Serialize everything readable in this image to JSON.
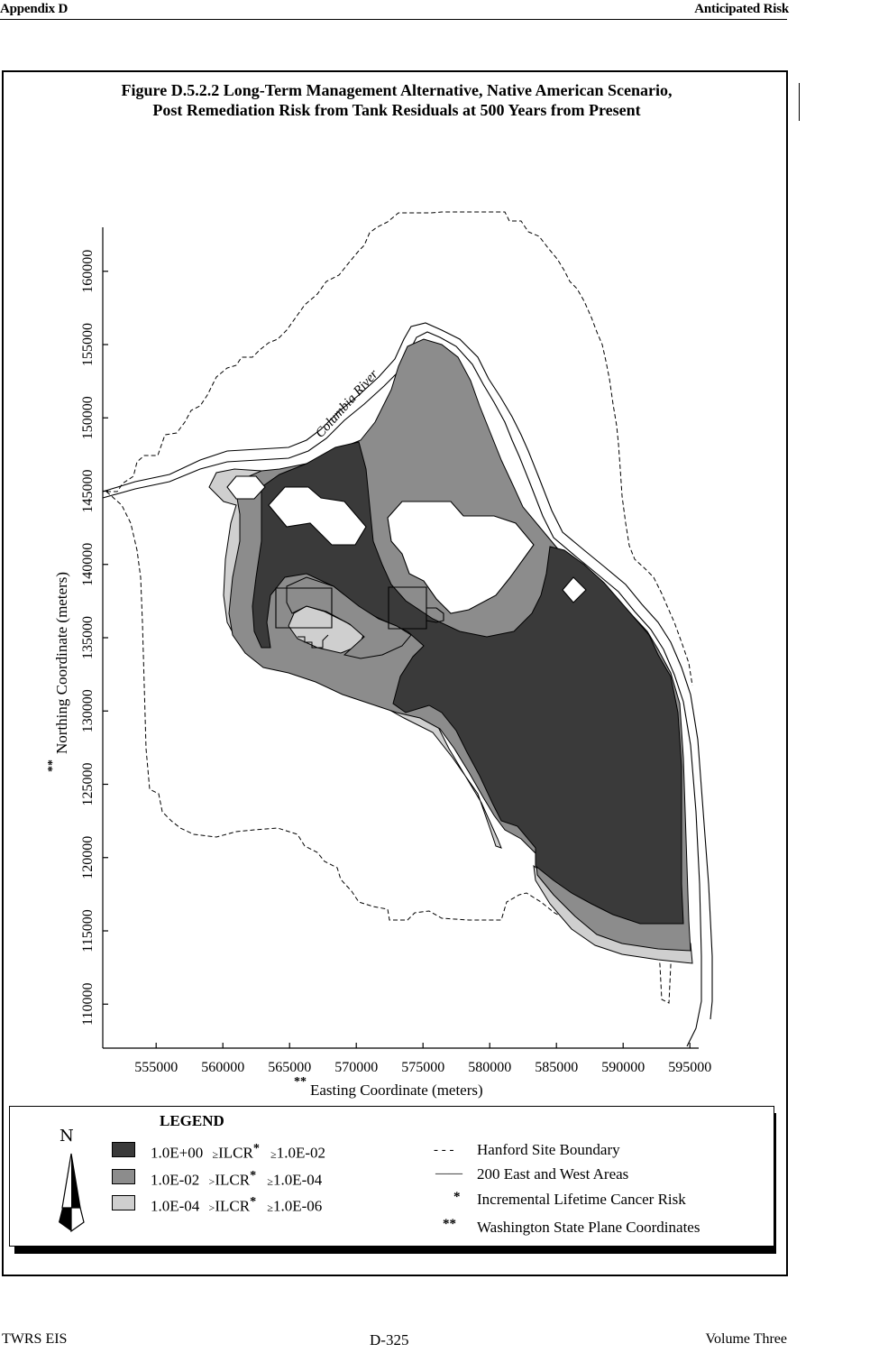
{
  "header": {
    "left": "Appendix D",
    "right": "Anticipated Risk"
  },
  "footer": {
    "left": "TWRS EIS",
    "center": "D-325",
    "right": "Volume Three"
  },
  "figure": {
    "title_line1": "Figure D.5.2.2  Long-Term Management Alternative, Native American Scenario,",
    "title_line2": "Post Remediation Risk from Tank Residuals at 500 Years from Present",
    "river_label": "Columbia River",
    "xlabel_marker": "**",
    "xlabel": "Easting Coordinate (meters)",
    "ylabel_marker": "**",
    "ylabel": "Northing Coordinate (meters)",
    "x_ticks": [
      "555000",
      "560000",
      "565000",
      "570000",
      "575000",
      "580000",
      "585000",
      "590000",
      "595000"
    ],
    "y_ticks": [
      "110000",
      "115000",
      "120000",
      "125000",
      "130000",
      "135000",
      "140000",
      "145000",
      "150000",
      "155000",
      "160000"
    ],
    "x_range": [
      551000,
      596000
    ],
    "y_range": [
      107000,
      163000
    ],
    "colors": {
      "high": "#3a3a3a",
      "mid": "#8c8c8c",
      "low": "#cfcfcf"
    }
  },
  "legend": {
    "title": "LEGEND",
    "north_symbol": "N",
    "rows": [
      {
        "a": "1.0E+00",
        "op1": "≥",
        "ilcr": "ILCR",
        "star": "*",
        "op2": "≥",
        "b": "1.0E-02",
        "color": "#3a3a3a"
      },
      {
        "a": "1.0E-02",
        "op1": ">",
        "ilcr": "ILCR",
        "star": "*",
        "op2": "≥",
        "b": "1.0E-04",
        "color": "#8c8c8c"
      },
      {
        "a": "1.0E-04",
        "op1": ">",
        "ilcr": "ILCR",
        "star": "*",
        "op2": "≥",
        "b": "1.0E-06",
        "color": "#cfcfcf"
      }
    ],
    "notes": [
      {
        "symbol": "- - -",
        "text": "Hanford Site Boundary"
      },
      {
        "symbol": "——",
        "text": "200 East and West Areas"
      },
      {
        "symbol": "*",
        "text": "Incremental Lifetime Cancer Risk"
      },
      {
        "symbol": "**",
        "text": "Washington State Plane Coordinates"
      }
    ]
  }
}
